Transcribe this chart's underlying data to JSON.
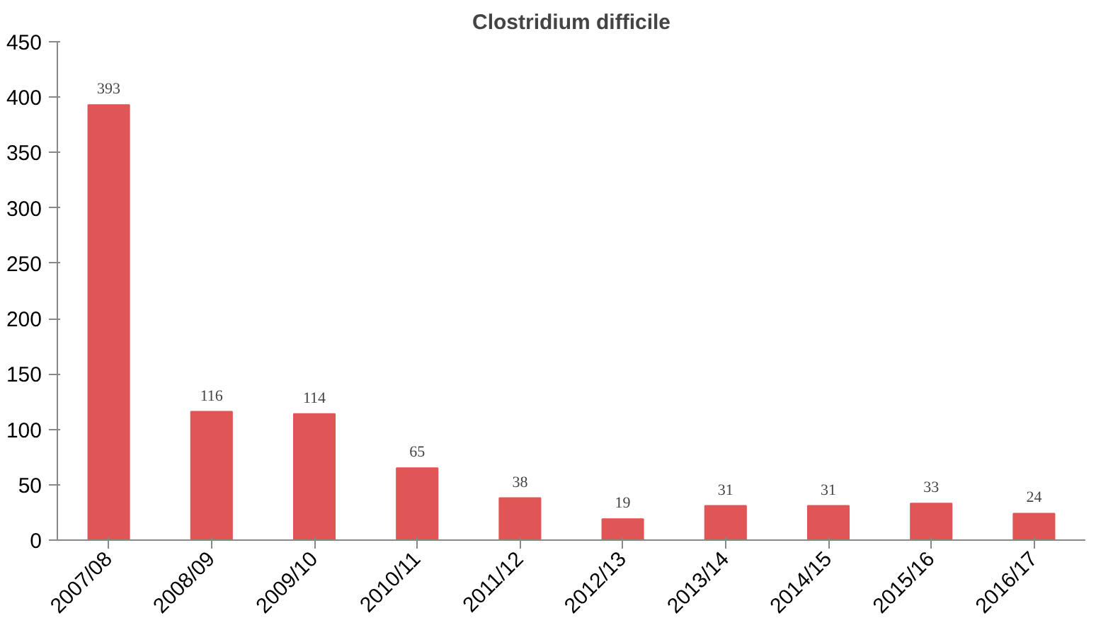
{
  "chart_data": {
    "type": "bar",
    "title": "Clostridium difficile",
    "categories": [
      "2007/08",
      "2008/09",
      "2009/10",
      "2010/11",
      "2011/12",
      "2012/13",
      "2013/14",
      "2014/15",
      "2015/16",
      "2016/17"
    ],
    "values": [
      393,
      116,
      114,
      65,
      38,
      19,
      31,
      31,
      33,
      24
    ],
    "color": "#e05555",
    "ylim": [
      0,
      450
    ],
    "yticks": [
      0,
      50,
      100,
      150,
      200,
      250,
      300,
      350,
      400,
      450
    ],
    "grid": false,
    "data_labels": true
  }
}
